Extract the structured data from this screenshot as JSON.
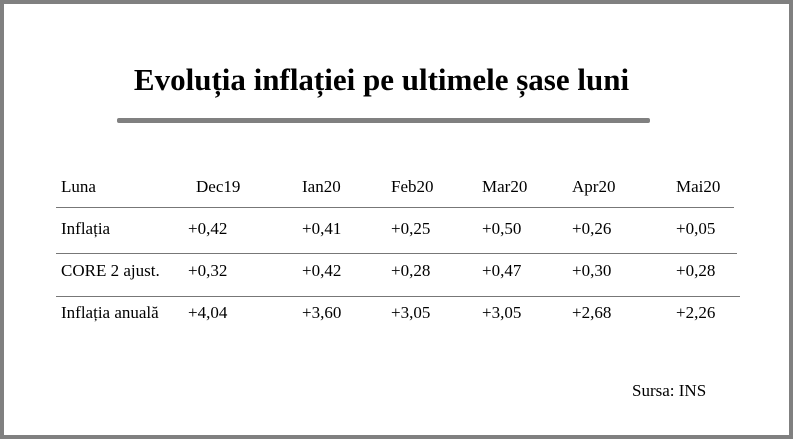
{
  "chart_data": {
    "type": "table",
    "title": "Evoluția inflației pe ultimele șase luni",
    "columns": [
      "Luna",
      "Dec19",
      "Ian20",
      "Feb20",
      "Mar20",
      "Apr20",
      "Mai20"
    ],
    "rows": [
      {
        "label": "Inflația",
        "cells": [
          "+0,42",
          "+0,41",
          "+0,25",
          "+0,50",
          "+0,26",
          "+0,05"
        ]
      },
      {
        "label": "CORE 2 ajust.",
        "cells": [
          "+0,32",
          "+0,42",
          "+0,28",
          "+0,47",
          "+0,30",
          "+0,28"
        ]
      },
      {
        "label": "Inflația anuală",
        "cells": [
          "+4,04",
          "+3,60",
          "+3,05",
          "+3,05",
          "+2,68",
          "+2,26"
        ]
      }
    ],
    "source": "Sursa: INS"
  }
}
